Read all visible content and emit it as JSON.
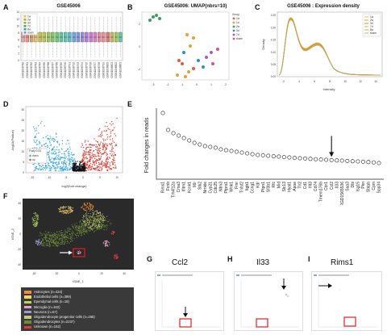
{
  "panels": {
    "A": {
      "label": "A",
      "title": "GSE45006",
      "legend": [
        "1w",
        "2w",
        "3d",
        "7d",
        "8w",
        "sham"
      ],
      "legend_colors": [
        "#e8c547",
        "#c9a227",
        "#8fb83a",
        "#4aa66b",
        "#3fa7a3",
        "#6a9ed8"
      ],
      "samples": [
        "GSM1096780",
        "GSM1096781",
        "GSM1096782",
        "GSM1096783",
        "GSM1096784",
        "GSM1096785",
        "GSM1096786",
        "GSM1096787",
        "GSM1096788",
        "GSM1096789",
        "GSM1096790",
        "GSM1096791",
        "GSM1096792",
        "GSM1096793",
        "GSM1096794",
        "GSM1096795",
        "GSM1096796",
        "GSM1096797",
        "GSM1096798",
        "GSM1096799",
        "GSM1096800",
        "GSM1096801",
        "GSM1096802",
        "GSM1096803"
      ],
      "box_colors": [
        "#e8a6a6",
        "#e88f8f",
        "#d8a46a",
        "#e8c06a",
        "#c8c04a",
        "#b8c850",
        "#9ec85a",
        "#7ec868",
        "#6ec87a",
        "#5cc894",
        "#5cc8b0",
        "#5cbcc8",
        "#6aa8d8",
        "#7c98e0",
        "#9a8ae0",
        "#b27edc",
        "#cc7ad0",
        "#e07cc0",
        "#e884a8",
        "#e89094",
        "#d87a7a",
        "#c8b45a",
        "#9cc85e",
        "#68c8a0"
      ],
      "yticks": [
        "0",
        "2",
        "4",
        "6",
        "8",
        "10",
        "12",
        "14"
      ]
    },
    "B": {
      "label": "B",
      "title": "GSE45006: UMAP(nbrs=10)",
      "legend_title": "Group",
      "legend": [
        "1w",
        "1d",
        "2w",
        "3d",
        "7d",
        "sham"
      ],
      "legend_colors": [
        "#e05a4a",
        "#e3a235",
        "#3f9e5c",
        "#2d8ec9",
        "#a25cc9",
        "#d4558f"
      ],
      "xticks": [
        "-3",
        "-2",
        "-1",
        "0",
        "1",
        "2"
      ],
      "yticks": [
        "-2",
        "0",
        "2"
      ]
    },
    "C": {
      "label": "C",
      "title": "GSE45006 : Expression density",
      "xlabel": "Intensity",
      "ylabel": "Density",
      "legend": [
        "1w",
        "2w",
        "3d",
        "7d",
        "8w",
        "sham"
      ],
      "legend_colors": [
        "#e8b84a",
        "#d99a2e",
        "#c7802a",
        "#e0a03a",
        "#9bb550",
        "#c8a060"
      ],
      "xticks": [
        "2",
        "4",
        "6",
        "8",
        "10",
        "12",
        "14"
      ],
      "yticks": [
        "0.00",
        "0.05",
        "0.10",
        "0.15",
        "0.20",
        "0.25"
      ]
    },
    "D": {
      "label": "D",
      "xlabel": "log2(fold change)",
      "ylabel": "-log10(Pvalue)",
      "legend_title": "P.adj<0.05",
      "legend": [
        "down",
        "up"
      ],
      "xticks": [
        "-15",
        "-10",
        "-5",
        "0",
        "5",
        "10"
      ],
      "yticks": [
        "0",
        "5",
        "10",
        "15",
        "20",
        "25",
        "30"
      ]
    },
    "E": {
      "label": "E",
      "ylabel": "Fold changes in reads"
    },
    "F": {
      "label": "F",
      "xlabel": "tSNE_1",
      "ylabel": "tSNE_2",
      "legend": [
        {
          "text": "Astrocytes (n=424)",
          "color": "#f08a3c"
        },
        {
          "text": "Endothelial cells (n=399)",
          "color": "#f5d26a"
        },
        {
          "text": "Ependymal cells (n=18)",
          "color": "#b8d65a"
        },
        {
          "text": "Microglia (n=182)",
          "color": "#e9a0c8"
        },
        {
          "text": "Neurons (n=57)",
          "color": "#9a9ad8"
        },
        {
          "text": "Oligodendrocyte progenitor cells (n=268)",
          "color": "#c8c87a"
        },
        {
          "text": "Oligodendrocytes (n=2237)",
          "color": "#6d8a3a"
        },
        {
          "text": "Unknown (n=152)",
          "color": "#e33a3a"
        }
      ],
      "xticks": [
        "-40",
        "-20",
        "0",
        "20",
        "40"
      ],
      "yticks": [
        "-40",
        "-20",
        "0",
        "20",
        "40"
      ]
    },
    "G": {
      "label": "G",
      "gene": "Ccl2"
    },
    "H": {
      "label": "H",
      "gene": "Il33"
    },
    "I": {
      "label": "I",
      "gene": "Rims1"
    }
  },
  "chart_data": [
    {
      "panel": "E",
      "type": "scatter",
      "ylabel": "Fold changes in reads",
      "categories": [
        "Rims1",
        "Fcnb",
        "Trh4f12a",
        "Cma3",
        "Ifitm1",
        "Kcnk1",
        "Il6r",
        "Stk2",
        "Nrnkle",
        "Cyp21",
        "Cdc25",
        "Ntm3",
        "Ptprs1",
        "Wnk1",
        "Fmr",
        "Tnfsf2",
        "Itgb1",
        "Ccng1",
        "Kdr",
        "Ptpn1",
        "Sf3b1",
        "Rfc",
        "Mid",
        "Slc13",
        "Hyal1",
        "Apoe",
        "Tlr2",
        "Cd1",
        "Ifit3",
        "Cd74",
        "Tmem176b",
        "Cbr1",
        "Ccl2",
        "Il33",
        "RGD1565536",
        "Saa3",
        "Dbi",
        "Isg15",
        "Pkn",
        "Sbtab",
        "Cpm",
        "Spp34"
      ],
      "values": [
        410,
        305,
        285,
        270,
        255,
        240,
        225,
        215,
        205,
        200,
        195,
        185,
        180,
        175,
        170,
        165,
        160,
        155,
        150,
        148,
        145,
        142,
        140,
        137,
        135,
        132,
        130,
        128,
        126,
        124,
        122,
        120,
        118,
        116,
        115,
        113,
        111,
        110,
        108,
        106,
        104,
        100
      ],
      "annotation": "arrow at Ccl2"
    }
  ]
}
